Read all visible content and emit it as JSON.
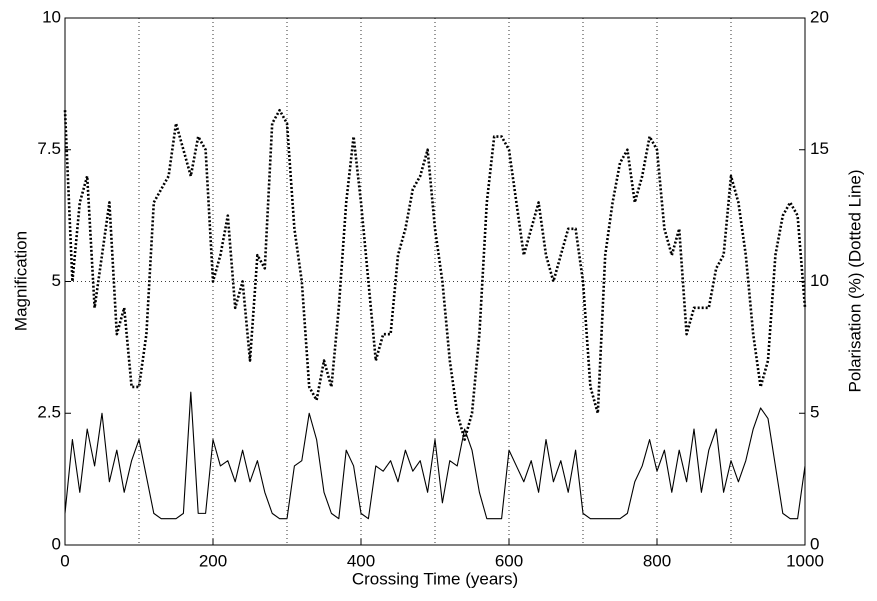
{
  "chart_data": {
    "type": "line",
    "xlabel": "Crossing Time (years)",
    "ylabel": "Magnification",
    "y2label": "Polarisation (%) (Dotted Line)",
    "x": [
      0,
      10,
      20,
      30,
      40,
      50,
      60,
      70,
      80,
      90,
      100,
      110,
      120,
      130,
      140,
      150,
      160,
      170,
      180,
      190,
      200,
      210,
      220,
      230,
      240,
      250,
      260,
      270,
      280,
      290,
      300,
      310,
      320,
      330,
      340,
      350,
      360,
      370,
      380,
      390,
      400,
      410,
      420,
      430,
      440,
      450,
      460,
      470,
      480,
      490,
      500,
      510,
      520,
      530,
      540,
      550,
      560,
      570,
      580,
      590,
      600,
      610,
      620,
      630,
      640,
      650,
      660,
      670,
      680,
      690,
      700,
      710,
      720,
      730,
      740,
      750,
      760,
      770,
      780,
      790,
      800,
      810,
      820,
      830,
      840,
      850,
      860,
      870,
      880,
      890,
      900,
      910,
      920,
      930,
      940,
      950,
      960,
      970,
      980,
      990,
      1000
    ],
    "series": [
      {
        "color": "#000000",
        "style": "solid",
        "values": [
          0.6,
          2.0,
          1.0,
          2.2,
          1.5,
          2.5,
          1.2,
          1.8,
          1.0,
          1.6,
          2.0,
          1.3,
          0.6,
          0.5,
          0.5,
          0.5,
          0.6,
          2.9,
          0.6,
          0.6,
          2.0,
          1.5,
          1.6,
          1.2,
          1.8,
          1.2,
          1.6,
          1.0,
          0.6,
          0.5,
          0.5,
          1.5,
          1.6,
          2.5,
          2.0,
          1.0,
          0.6,
          0.5,
          1.8,
          1.5,
          0.6,
          0.5,
          1.5,
          1.4,
          1.6,
          1.2,
          1.8,
          1.4,
          1.6,
          1.0,
          2.0,
          0.8,
          1.6,
          1.5,
          2.2,
          1.8,
          1.0,
          0.5,
          0.5,
          0.5,
          1.8,
          1.5,
          1.2,
          1.6,
          1.0,
          2.0,
          1.2,
          1.6,
          1.0,
          1.8,
          0.6,
          0.5,
          0.5,
          0.5,
          0.5,
          0.5,
          0.6,
          1.2,
          1.5,
          2.0,
          1.4,
          1.8,
          1.0,
          1.8,
          1.2,
          2.2,
          1.0,
          1.8,
          2.2,
          1.0,
          1.6,
          1.2,
          1.6,
          2.2,
          2.6,
          2.4,
          1.5,
          0.6,
          0.5,
          0.5,
          1.5
        ]
      },
      {
        "color": "#000000",
        "style": "dotted",
        "axis": "y2",
        "values": [
          16.5,
          10,
          13,
          14,
          9,
          11,
          13,
          8,
          9,
          6,
          6,
          8,
          13,
          13.5,
          14,
          16,
          15,
          14,
          15.5,
          15,
          10,
          11,
          12.5,
          9,
          10,
          7,
          11,
          10.5,
          16,
          16.5,
          16,
          12,
          10,
          6,
          5.5,
          7,
          6,
          9,
          13,
          15.5,
          13,
          10,
          7,
          8,
          8,
          11,
          12,
          13.5,
          14,
          15,
          12,
          10,
          7,
          5,
          4,
          5,
          8,
          13,
          15.5,
          15.5,
          15,
          13,
          11,
          12,
          13,
          11,
          10,
          11,
          12,
          12,
          10,
          6,
          5,
          11,
          13,
          14.5,
          15,
          13,
          14,
          15.5,
          15,
          12,
          11,
          12,
          8,
          9,
          9,
          9,
          10.5,
          11,
          14,
          13,
          11,
          8,
          6,
          7,
          11,
          12.5,
          13,
          12.5,
          9
        ]
      }
    ],
    "xlim": [
      0,
      1000
    ],
    "xticks": [
      0,
      200,
      400,
      600,
      800,
      1000
    ],
    "ylim": [
      0,
      10
    ],
    "yticks": [
      0,
      2.5,
      5,
      7.5,
      10
    ],
    "y2lim": [
      0,
      20
    ],
    "y2ticks": [
      0,
      5,
      10,
      15,
      20
    ],
    "xgrid": [
      100,
      200,
      300,
      400,
      500,
      600,
      700,
      800,
      900
    ],
    "ygrid": [
      5
    ]
  }
}
